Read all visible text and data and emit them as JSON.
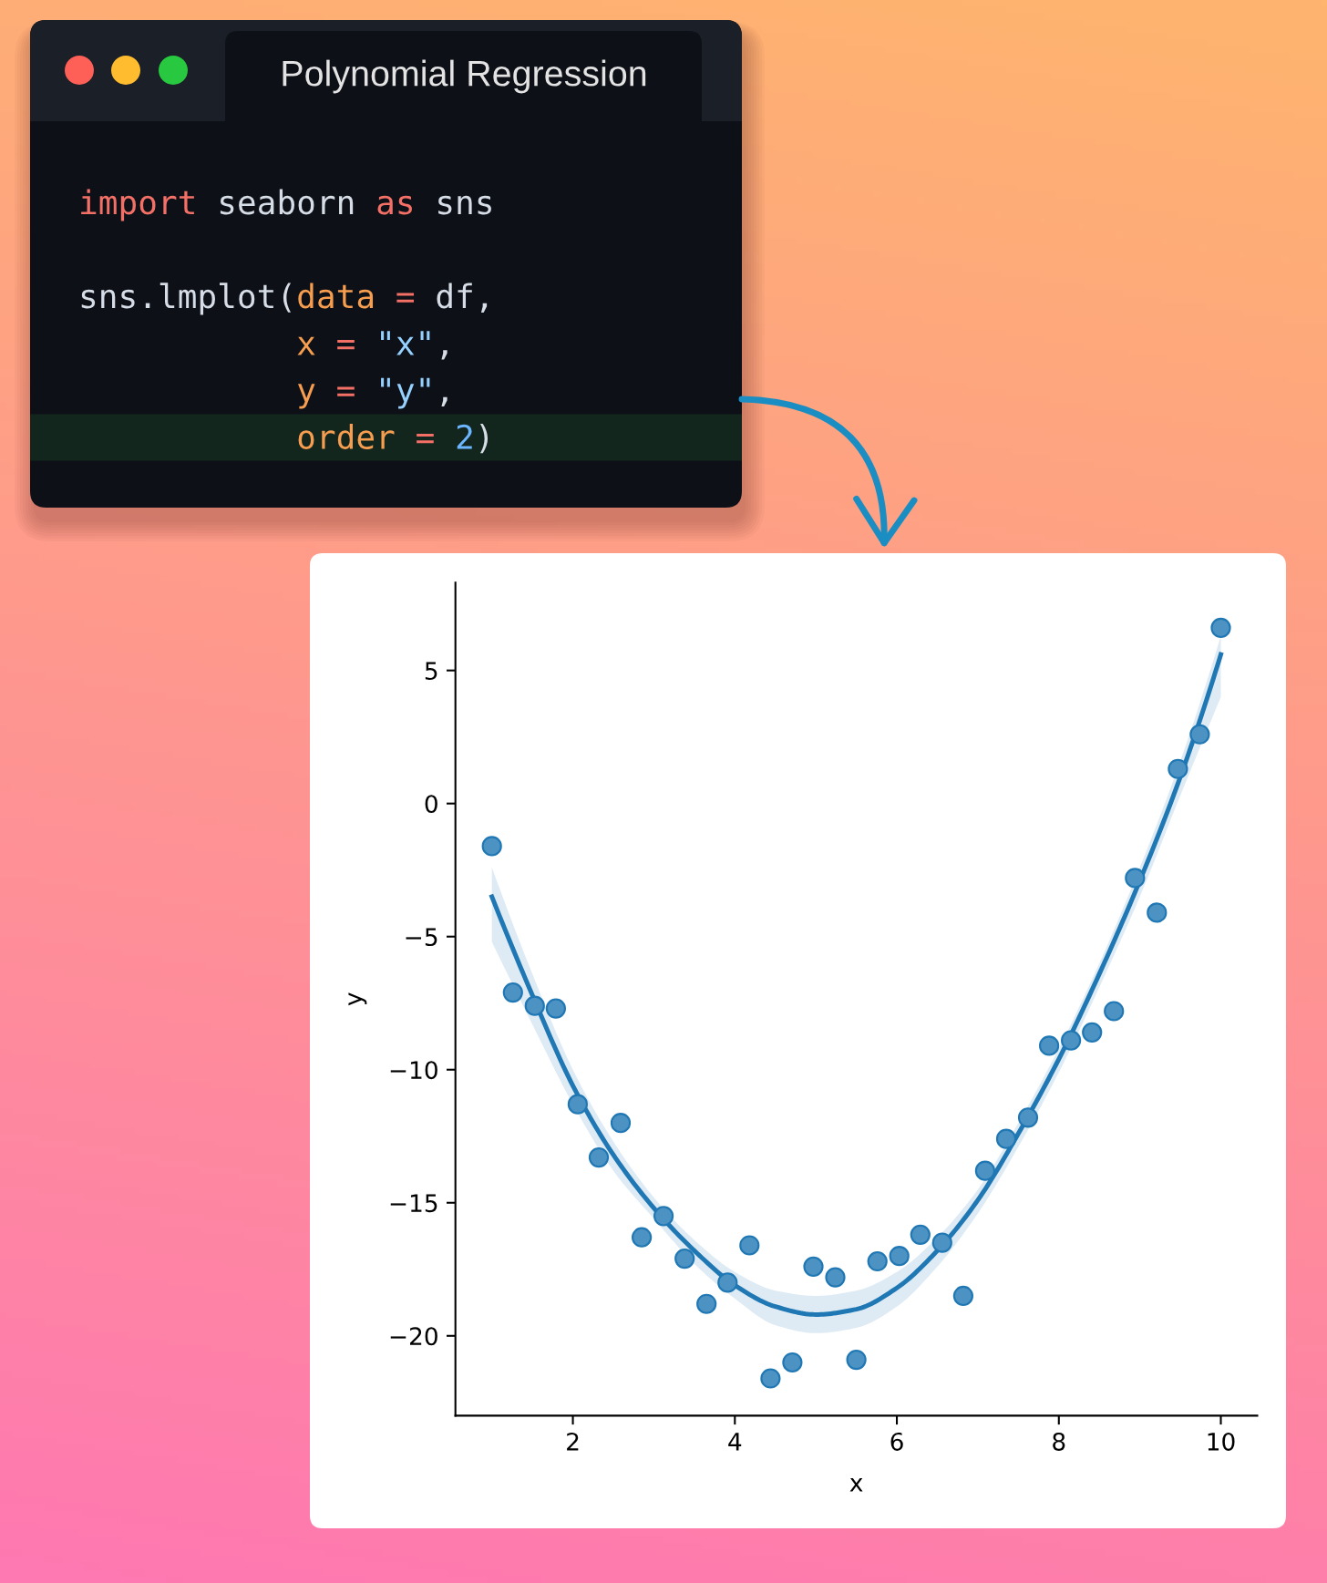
{
  "chart_data": {
    "type": "scatter",
    "title": "Polynomial Regression",
    "xlabel": "x",
    "ylabel": "y",
    "annotations": [
      "import seaborn as sns\n\nsns.lmplot(data = df,\n           x = \"x\",\n           y = \"y\",\n           order = 2)"
    ],
    "xlim": [
      0.55,
      10.45
    ],
    "ylim": [
      -23.0,
      8.3
    ],
    "xticks": [
      2,
      4,
      6,
      8,
      10
    ],
    "yticks": [
      -20,
      -15,
      -10,
      -5,
      0,
      5
    ],
    "marker": "circle",
    "series": [
      {
        "color": "#1f77b4",
        "x": [
          1.0,
          1.26,
          1.53,
          1.79,
          2.06,
          2.32,
          2.59,
          2.85,
          3.12,
          3.38,
          3.65,
          3.91,
          4.18,
          4.44,
          4.71,
          4.97,
          5.24,
          5.5,
          5.76,
          6.03,
          6.29,
          6.56,
          6.82,
          7.09,
          7.35,
          7.62,
          7.88,
          8.15,
          8.41,
          8.68,
          8.94,
          9.21,
          9.47,
          9.74,
          10.0
        ],
        "values": [
          -1.6,
          -7.1,
          -7.6,
          -7.7,
          -11.3,
          -13.3,
          -12.0,
          -16.3,
          -15.5,
          -17.1,
          -18.8,
          -18.0,
          -16.6,
          -21.6,
          -21.0,
          -17.4,
          -17.8,
          -20.9,
          -17.2,
          -17.0,
          -16.2,
          -16.5,
          -18.5,
          -13.8,
          -12.6,
          -11.8,
          -9.1,
          -8.9,
          -8.6,
          -7.8,
          -2.8,
          -4.1,
          1.3,
          2.6,
          6.6
        ]
      },
      {
        "type": "line",
        "color": "#1f77b4",
        "marker": "none",
        "x": [
          1.0,
          1.5,
          2.0,
          2.5,
          3.0,
          3.5,
          4.0,
          4.5,
          5.0,
          5.5,
          6.0,
          6.5,
          7.0,
          7.5,
          8.0,
          8.5,
          9.0,
          9.5,
          10.0
        ],
        "values": [
          -3.5,
          -7.2,
          -10.6,
          -13.2,
          -15.2,
          -16.8,
          -18.1,
          -18.9,
          -19.2,
          -19.0,
          -18.2,
          -16.8,
          -14.9,
          -12.4,
          -9.6,
          -6.4,
          -2.9,
          1.0,
          5.6
        ],
        "lower": [
          -5.2,
          -8.3,
          -11.3,
          -13.8,
          -15.6,
          -17.3,
          -18.6,
          -19.6,
          -19.9,
          -19.7,
          -18.9,
          -17.4,
          -15.4,
          -12.9,
          -10.1,
          -6.9,
          -3.5,
          0.3,
          4.0
        ],
        "upper": [
          -2.4,
          -6.4,
          -10.0,
          -12.7,
          -14.8,
          -16.4,
          -17.6,
          -18.3,
          -18.5,
          -18.3,
          -17.6,
          -16.3,
          -14.5,
          -12.0,
          -9.2,
          -6.0,
          -2.4,
          1.6,
          6.3
        ]
      }
    ]
  }
}
